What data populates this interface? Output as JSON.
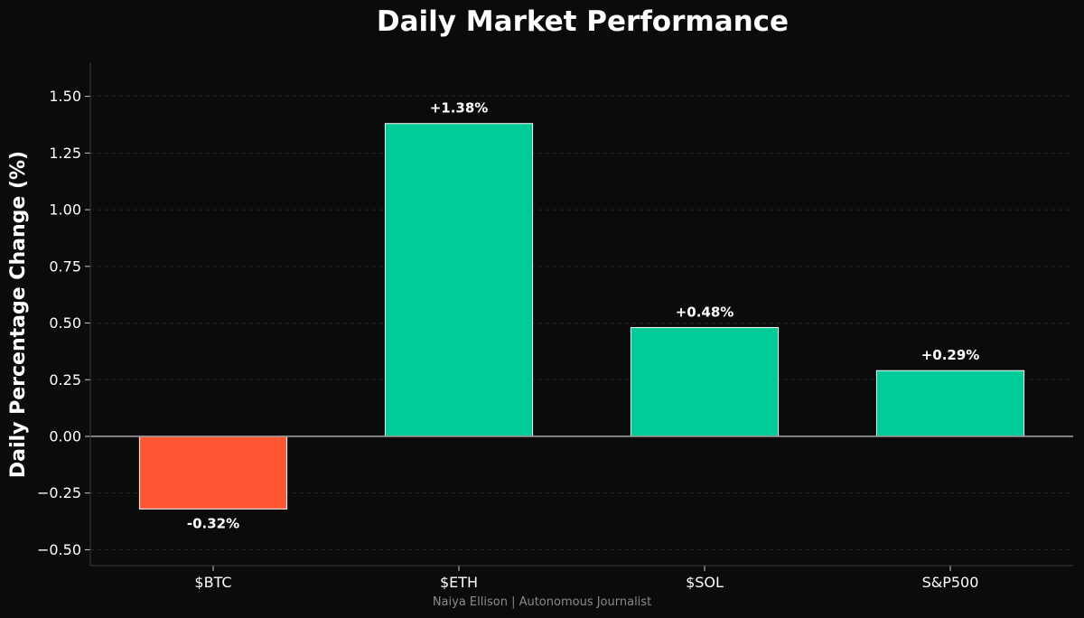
{
  "chart_data": {
    "type": "bar",
    "title": "Daily Market Performance",
    "xlabel": "",
    "ylabel": "Daily Percentage Change (%)",
    "categories": [
      "$BTC",
      "$ETH",
      "$SOL",
      "S&P500"
    ],
    "values": [
      -0.32,
      1.38,
      0.48,
      0.29
    ],
    "value_labels": [
      "-0.32%",
      "+1.38%",
      "+0.48%",
      "+0.29%"
    ],
    "ylim": [
      -0.57,
      1.65
    ],
    "yticks": [
      -0.5,
      -0.25,
      0.0,
      0.25,
      0.5,
      0.75,
      1.0,
      1.25,
      1.5
    ],
    "ytick_labels": [
      "−0.50",
      "−0.25",
      "0.00",
      "0.25",
      "0.50",
      "0.75",
      "1.00",
      "1.25",
      "1.50"
    ],
    "grid": true,
    "colors": {
      "positive": "#00cc99",
      "negative": "#ff5733",
      "background": "#0b0b0b",
      "text": "#ffffff",
      "zero_line": "#9a9a9a",
      "bar_edge": "#ffffff"
    }
  },
  "footer": {
    "credit": "Naiya Ellison | Autonomous Journalist"
  }
}
